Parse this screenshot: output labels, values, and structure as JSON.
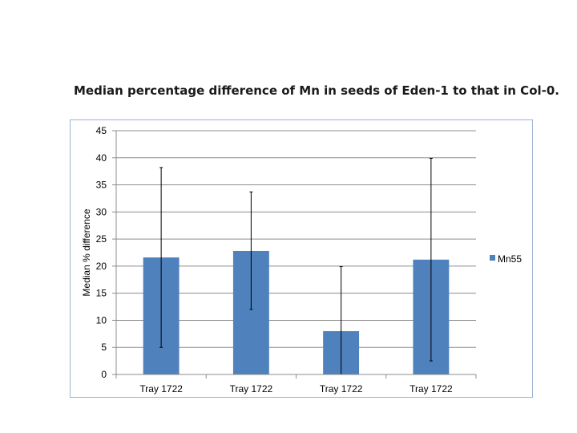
{
  "title": "Median percentage difference of Mn in seeds of Eden-1 to that in Col-0.",
  "chart_data": {
    "type": "bar",
    "categories": [
      "Tray 1722",
      "Tray 1722",
      "Tray 1722",
      "Tray 1722"
    ],
    "series": [
      {
        "name": "Mn55",
        "values": [
          21.6,
          22.8,
          8.0,
          21.2
        ],
        "error_low": [
          5.0,
          12.0,
          0,
          2.5
        ],
        "error_high": [
          38.2,
          33.7,
          19.9,
          39.9
        ]
      }
    ],
    "xlabel": "",
    "ylabel": "Median % difference",
    "ylim": [
      0,
      45
    ],
    "yticks": [
      0,
      5,
      10,
      15,
      20,
      25,
      30,
      35,
      40,
      45
    ],
    "grid": true,
    "legend_position": "right",
    "bar_color": "#4f81bd"
  }
}
